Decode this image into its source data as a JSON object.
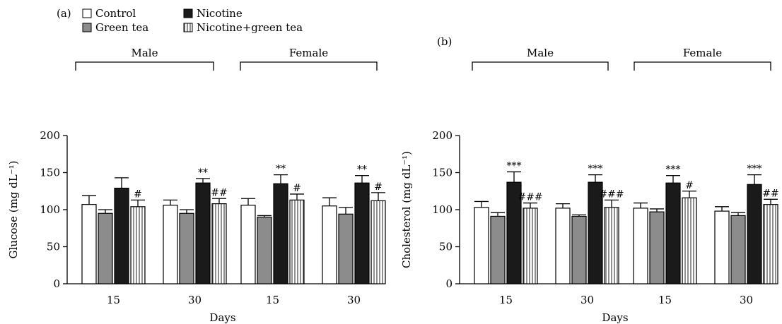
{
  "legend": {
    "items": [
      {
        "label": "Control",
        "fill": "white"
      },
      {
        "label": "Nicotine",
        "fill": "black"
      },
      {
        "label": "Green tea",
        "fill": "gray"
      },
      {
        "label": "Nicotine+green tea",
        "fill": "striped"
      }
    ]
  },
  "colors": {
    "control": "#ffffff",
    "green_tea": "#8c8c8c",
    "nicotine": "#1a1a1a",
    "stripe": "#555555",
    "axis": "#000000"
  },
  "chart_data": [
    {
      "type": "bar",
      "panel_label": "(a)",
      "ylabel": "Glucose (mg dL⁻¹)",
      "xlabel": "Days",
      "ylim": [
        0,
        200
      ],
      "yticks": [
        0,
        50,
        100,
        150,
        200
      ],
      "series_names": [
        "Control",
        "Green tea",
        "Nicotine",
        "Nicotine+green tea"
      ],
      "groups": [
        {
          "sex": "Male",
          "day": "15",
          "values": [
            107,
            95,
            129,
            104
          ],
          "errors": [
            12,
            5,
            14,
            9
          ],
          "annotations": [
            "",
            "",
            "",
            "#"
          ]
        },
        {
          "sex": "Male",
          "day": "30",
          "values": [
            106,
            95,
            136,
            108
          ],
          "errors": [
            7,
            5,
            6,
            7
          ],
          "annotations": [
            "",
            "",
            "**",
            "##"
          ]
        },
        {
          "sex": "Female",
          "day": "15",
          "values": [
            106,
            90,
            135,
            113
          ],
          "errors": [
            9,
            2,
            12,
            8
          ],
          "annotations": [
            "",
            "",
            "**",
            "#"
          ]
        },
        {
          "sex": "Female",
          "day": "30",
          "values": [
            105,
            94,
            136,
            112
          ],
          "errors": [
            11,
            9,
            10,
            11
          ],
          "annotations": [
            "",
            "",
            "**",
            "#"
          ]
        }
      ],
      "brackets": [
        {
          "label": "Male"
        },
        {
          "label": "Female"
        }
      ]
    },
    {
      "type": "bar",
      "panel_label": "(b)",
      "ylabel": "Cholesterol (mg dL⁻¹)",
      "xlabel": "Days",
      "ylim": [
        0,
        200
      ],
      "yticks": [
        0,
        50,
        100,
        150,
        200
      ],
      "series_names": [
        "Control",
        "Green tea",
        "Nicotine",
        "Nicotine+green tea"
      ],
      "groups": [
        {
          "sex": "Male",
          "day": "15",
          "values": [
            103,
            91,
            137,
            102
          ],
          "errors": [
            8,
            5,
            14,
            7
          ],
          "annotations": [
            "",
            "",
            "***",
            "###"
          ]
        },
        {
          "sex": "Male",
          "day": "30",
          "values": [
            102,
            91,
            137,
            103
          ],
          "errors": [
            6,
            2,
            10,
            10
          ],
          "annotations": [
            "",
            "",
            "***",
            "###"
          ]
        },
        {
          "sex": "Female",
          "day": "15",
          "values": [
            102,
            97,
            136,
            116
          ],
          "errors": [
            7,
            4,
            10,
            9
          ],
          "annotations": [
            "",
            "",
            "***",
            "#"
          ]
        },
        {
          "sex": "Female",
          "day": "30",
          "values": [
            98,
            92,
            134,
            107
          ],
          "errors": [
            6,
            4,
            13,
            7
          ],
          "annotations": [
            "",
            "",
            "***",
            "##"
          ]
        }
      ],
      "brackets": [
        {
          "label": "Male"
        },
        {
          "label": "Female"
        }
      ]
    }
  ]
}
